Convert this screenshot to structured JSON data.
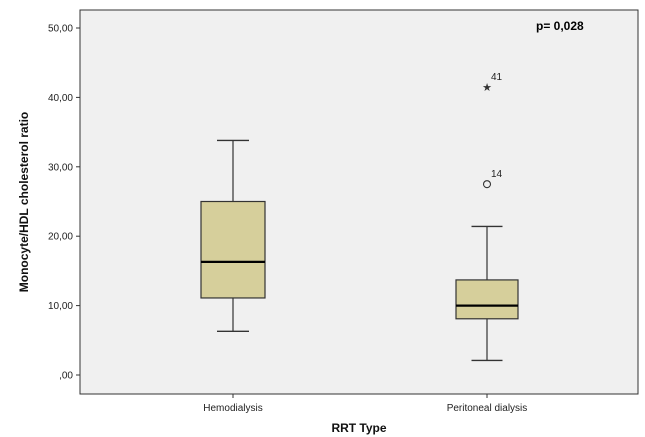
{
  "chart_data": {
    "type": "boxplot",
    "xlabel": "RRT Type",
    "ylabel": "Monocyte/HDL cholesterol ratio",
    "annotation": "p= 0,028",
    "ylim": [
      -2,
      52
    ],
    "y_ticks": [
      0,
      10,
      20,
      30,
      40,
      50
    ],
    "y_tick_labels": [
      ",00",
      "10,00",
      "20,00",
      "30,00",
      "40,00",
      "50,00"
    ],
    "categories": [
      "Hemodialysis",
      "Peritoneal dialysis"
    ],
    "boxes": [
      {
        "category": "Hemodialysis",
        "whisker_low": 6.3,
        "q1": 11.1,
        "median": 16.3,
        "q3": 25.0,
        "whisker_high": 33.8,
        "outliers": []
      },
      {
        "category": "Peritoneal dialysis",
        "whisker_low": 2.1,
        "q1": 8.1,
        "median": 10.0,
        "q3": 13.7,
        "whisker_high": 21.4,
        "outliers": [
          {
            "value": 27.5,
            "label": "14",
            "marker": "circle"
          },
          {
            "value": 41.5,
            "label": "41",
            "marker": "star"
          }
        ]
      }
    ],
    "colors": {
      "box_fill": "#d6cf9b",
      "plot_bg": "#f0f0f0",
      "stroke": "#333333"
    },
    "grid": false
  }
}
